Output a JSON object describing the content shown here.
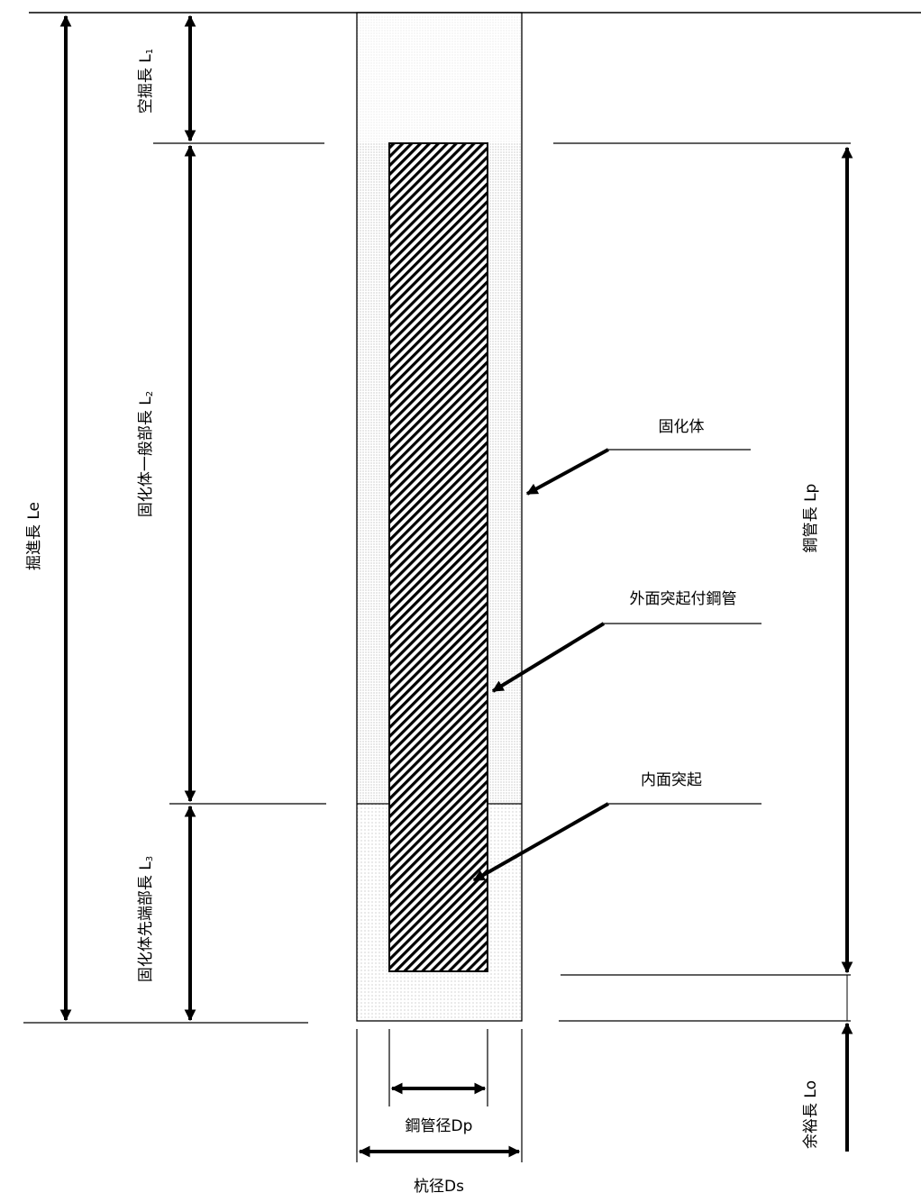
{
  "labels": {
    "excavation_length": "掘進長 Le",
    "empty_excavation": {
      "main": "空掘長 L",
      "sub": "1"
    },
    "general_section": {
      "main": "固化体一般部長 L",
      "sub": "2"
    },
    "tip_section": {
      "main": "固化体先端部長 L",
      "sub": "3"
    },
    "solidified_body": "固化体",
    "outer_ribbed_pipe": "外面突起付鋼管",
    "inner_rib": "内面突起",
    "steel_pipe_length": "鋼管長 Lp",
    "margin_length": "余裕長 Lo",
    "steel_pipe_diameter": "鋼管径Dp",
    "pile_diameter": "杭径Ds"
  }
}
